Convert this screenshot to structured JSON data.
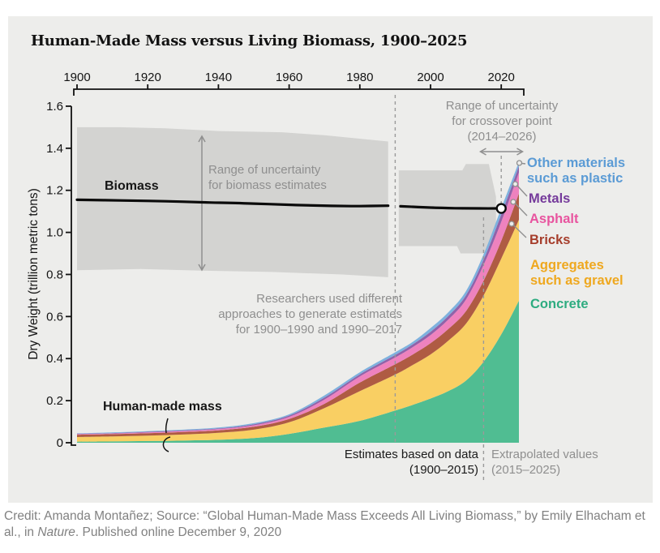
{
  "title": "Human-Made Mass versus Living Biomass, 1900–2025",
  "credit": {
    "prefix": "Credit: Amanda Montañez; Source: “Global Human-Made Mass Exceeds All Living Biomass,” by Emily Elhacham et al., in ",
    "italic": "Nature",
    "suffix": ". Published online December 9, 2020"
  },
  "annotations": {
    "biomass": "Biomass",
    "human_made": "Human-made mass",
    "range_biomass": "Range of uncertainty\nfor biomass estimates",
    "range_crossover": "Range of uncertainty\nfor crossover point\n(2014–2026)",
    "researchers": "Researchers used different\napproaches to generate estimates\nfor 1900–1990 and 1990–2017",
    "estimates": "Estimates based on data\n(1900–2015)",
    "extrapolated": "Extrapolated values\n(2015–2025)"
  },
  "legend": {
    "items": [
      {
        "label": "Other materials\nsuch as plastic",
        "color": "#5B9BD5"
      },
      {
        "label": "Metals",
        "color": "#753A9B"
      },
      {
        "label": "Asphalt",
        "color": "#E8549F"
      },
      {
        "label": "Bricks",
        "color": "#A63E2C"
      },
      {
        "label": "Aggregates\nsuch as gravel",
        "color": "#EFA81F"
      },
      {
        "label": "Concrete",
        "color": "#2EAC80"
      }
    ]
  },
  "colors": {
    "panel": "#EDEDEB",
    "band": "#D3D3D1",
    "axis": "#111111",
    "dashed": "#9A9A9A",
    "annotation_gray": "#8F8F8F",
    "biomass_line": "#0B0B0B"
  },
  "chart_data": {
    "type": "area",
    "title": "Human-Made Mass versus Living Biomass, 1900–2025",
    "xlabel": "",
    "ylabel": "Dry Weight (trillion metric tons)",
    "x_ticks": [
      1900,
      1920,
      1940,
      1960,
      1980,
      2000,
      2020
    ],
    "y_ticks": [
      "0",
      "0.2",
      "0.4",
      "0.6",
      "0.8",
      "1.0",
      "1.2",
      "1.4",
      "1.6"
    ],
    "xlim": [
      1899,
      2026.5
    ],
    "ylim": [
      0,
      1.6
    ],
    "grid": false,
    "years": [
      1900,
      1910,
      1920,
      1930,
      1940,
      1950,
      1960,
      1970,
      1980,
      1990,
      1995,
      2000,
      2005,
      2010,
      2015,
      2020,
      2025
    ],
    "series": [
      {
        "name": "Concrete",
        "color": "#50BD92",
        "values": [
          0.005,
          0.006,
          0.008,
          0.01,
          0.014,
          0.022,
          0.042,
          0.072,
          0.104,
          0.153,
          0.18,
          0.21,
          0.245,
          0.295,
          0.385,
          0.515,
          0.675
        ]
      },
      {
        "name": "Aggregates such as gravel",
        "color": "#F9CF63",
        "values": [
          0.022,
          0.024,
          0.026,
          0.029,
          0.033,
          0.04,
          0.055,
          0.093,
          0.141,
          0.171,
          0.19,
          0.21,
          0.24,
          0.27,
          0.315,
          0.36,
          0.385
        ]
      },
      {
        "name": "Bricks",
        "color": "#AF5B43",
        "values": [
          0.011,
          0.011,
          0.011,
          0.012,
          0.012,
          0.014,
          0.016,
          0.02,
          0.041,
          0.049,
          0.05,
          0.053,
          0.055,
          0.06,
          0.07,
          0.085,
          0.125
        ]
      },
      {
        "name": "Asphalt",
        "color": "#EE82BE",
        "values": [
          0.003,
          0.003,
          0.004,
          0.005,
          0.006,
          0.007,
          0.01,
          0.02,
          0.029,
          0.032,
          0.035,
          0.039,
          0.045,
          0.055,
          0.075,
          0.09,
          0.1
        ]
      },
      {
        "name": "Metals",
        "color": "#9162A9",
        "values": [
          0.002,
          0.002,
          0.003,
          0.003,
          0.003,
          0.005,
          0.006,
          0.01,
          0.01,
          0.012,
          0.013,
          0.015,
          0.017,
          0.02,
          0.025,
          0.035,
          0.03
        ]
      },
      {
        "name": "Other materials such as plastic",
        "color": "#7EB1DE",
        "values": [
          0.002,
          0.003,
          0.003,
          0.003,
          0.004,
          0.005,
          0.006,
          0.01,
          0.01,
          0.013,
          0.012,
          0.018,
          0.018,
          0.02,
          0.025,
          0.03,
          0.02
        ]
      }
    ],
    "biomass_line": {
      "label": "Biomass",
      "segments": [
        [
          [
            1900,
            1.155
          ],
          [
            1912,
            1.152
          ],
          [
            1925,
            1.148
          ],
          [
            1938,
            1.142
          ],
          [
            1950,
            1.137
          ],
          [
            1962,
            1.13
          ],
          [
            1972,
            1.126
          ],
          [
            1980,
            1.125
          ],
          [
            1988,
            1.127
          ]
        ],
        [
          [
            1991.5,
            1.124
          ],
          [
            2000,
            1.118
          ],
          [
            2007,
            1.115
          ],
          [
            2014,
            1.114
          ],
          [
            2020,
            1.114
          ]
        ]
      ]
    },
    "uncertainty_bands": [
      {
        "top": [
          [
            1900,
            1.5
          ],
          [
            1912,
            1.5
          ],
          [
            1925,
            1.495
          ],
          [
            1940,
            1.482
          ],
          [
            1958,
            1.476
          ],
          [
            1970,
            1.462
          ],
          [
            1988,
            1.432
          ]
        ],
        "bottom": [
          [
            1900,
            0.82
          ],
          [
            1918,
            0.826
          ],
          [
            1935,
            0.818
          ],
          [
            1955,
            0.812
          ],
          [
            1975,
            0.8
          ],
          [
            1988,
            0.787
          ]
        ]
      },
      {
        "top": [
          [
            1991,
            1.295
          ],
          [
            2009,
            1.295
          ],
          [
            2010,
            1.325
          ],
          [
            2016.5,
            1.325
          ],
          [
            2018.5,
            1.17
          ]
        ],
        "bottom": [
          [
            1991,
            0.935
          ],
          [
            2007.5,
            0.935
          ],
          [
            2008.5,
            0.9
          ],
          [
            2016.5,
            0.9
          ],
          [
            2018.5,
            1.0
          ]
        ]
      }
    ],
    "crossover_point": {
      "year": 2020,
      "value": 1.114,
      "uncertainty_range": "2014–2026"
    },
    "dashed_line_years": [
      1990,
      2015
    ],
    "legend_position": "right"
  }
}
